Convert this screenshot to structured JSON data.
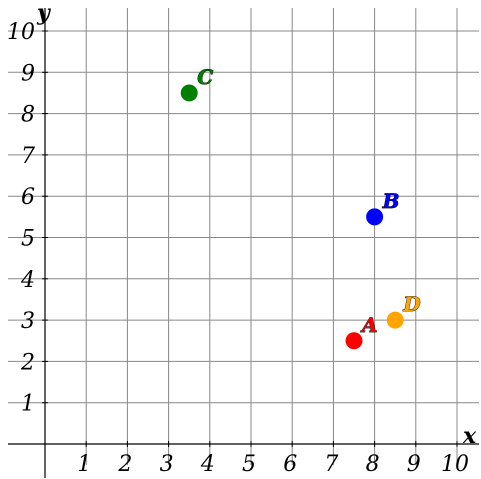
{
  "chart_data": {
    "type": "scatter",
    "title": "",
    "xlabel": "x",
    "ylabel": "y",
    "xlim": [
      0,
      10
    ],
    "ylim": [
      0,
      10
    ],
    "x_ticks": [
      1,
      2,
      3,
      4,
      5,
      6,
      7,
      8,
      9,
      10
    ],
    "y_ticks": [
      1,
      2,
      3,
      4,
      5,
      6,
      7,
      8,
      9,
      10
    ],
    "grid": true,
    "points": [
      {
        "label": "A",
        "x": 7.5,
        "y": 2.5,
        "color": "#ff0000"
      },
      {
        "label": "B",
        "x": 8.0,
        "y": 5.5,
        "color": "#0000ff"
      },
      {
        "label": "C",
        "x": 3.5,
        "y": 8.5,
        "color": "#008000"
      },
      {
        "label": "D",
        "x": 8.5,
        "y": 3.0,
        "color": "#ffa500"
      }
    ]
  }
}
